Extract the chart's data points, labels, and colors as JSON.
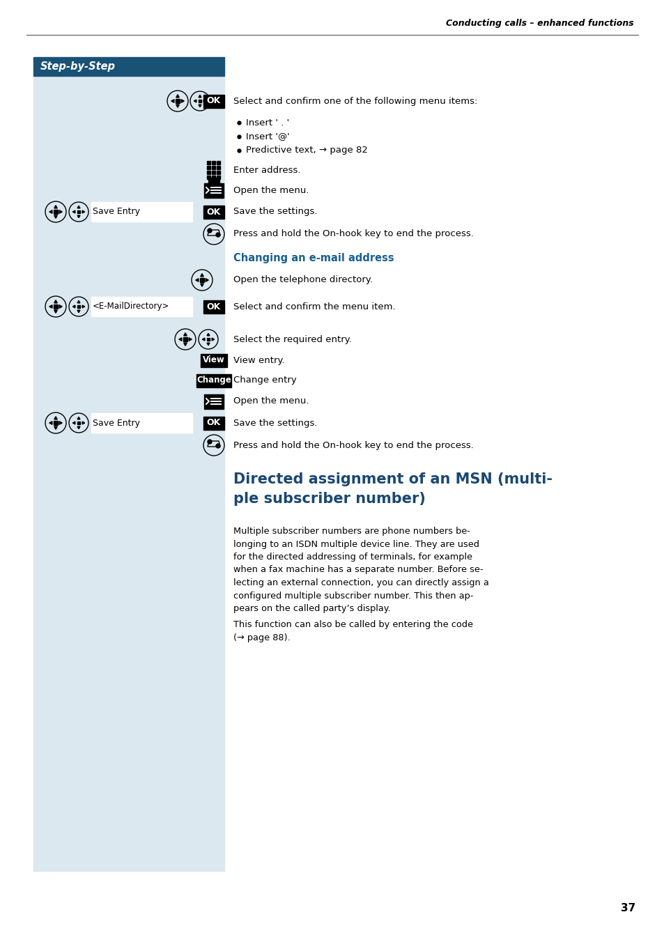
{
  "page_bg": "#ffffff",
  "sidebar_bg": "#dce8f0",
  "header_bar_color": "#1a5276",
  "header_text": "Step-by-Step",
  "header_text_color": "#ffffff",
  "top_right_text": "Conducting calls – enhanced functions",
  "page_number": "37",
  "title_color": "#1a4872",
  "section_title_color": "#1a6090",
  "body_text_color": "#000000"
}
